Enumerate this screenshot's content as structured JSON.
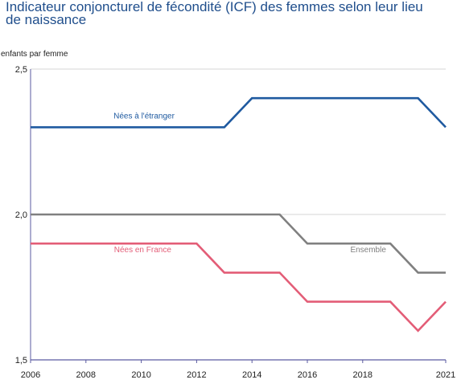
{
  "title": "Indicateur conjoncturel de fécondité (ICF) des femmes selon leur lieu de naissance",
  "chart_data": {
    "type": "line",
    "title": "Indicateur conjoncturel de fécondité (ICF) des femmes selon leur lieu de naissance",
    "ylabel": "enfants par femme",
    "xlabel": "",
    "x": [
      2006,
      2007,
      2008,
      2009,
      2010,
      2011,
      2012,
      2013,
      2014,
      2015,
      2016,
      2017,
      2018,
      2019,
      2020,
      2021
    ],
    "xlim": [
      2006,
      2021
    ],
    "ylim": [
      1.5,
      2.5
    ],
    "x_ticks": [
      "2006",
      "2008",
      "2010",
      "2012",
      "2014",
      "2016",
      "2018",
      "2021"
    ],
    "x_tick_values": [
      2006,
      2008,
      2010,
      2012,
      2014,
      2016,
      2018,
      2021
    ],
    "y_ticks": [
      "1,5",
      "2,0",
      "2,5"
    ],
    "y_tick_values": [
      1.5,
      2.0,
      2.5
    ],
    "grid": "horizontal",
    "series": [
      {
        "name": "Nées à l'étranger",
        "color": "#1f5aa0",
        "values": [
          2.3,
          2.3,
          2.3,
          2.3,
          2.3,
          2.3,
          2.3,
          2.3,
          2.4,
          2.4,
          2.4,
          2.4,
          2.4,
          2.4,
          2.4,
          2.3
        ],
        "label_at": 2010.1,
        "label_y": 2.33
      },
      {
        "name": "Ensemble",
        "color": "#808080",
        "values": [
          2.0,
          2.0,
          2.0,
          2.0,
          2.0,
          2.0,
          2.0,
          2.0,
          2.0,
          2.0,
          1.9,
          1.9,
          1.9,
          1.9,
          1.8,
          1.8
        ],
        "label_at": 2018.2,
        "label_y": 1.87
      },
      {
        "name": "Nées en France",
        "color": "#e35d77",
        "values": [
          1.9,
          1.9,
          1.9,
          1.9,
          1.9,
          1.9,
          1.9,
          1.8,
          1.8,
          1.8,
          1.7,
          1.7,
          1.7,
          1.7,
          1.6,
          1.7
        ],
        "label_at": 2010.05,
        "label_y": 1.87
      }
    ]
  }
}
